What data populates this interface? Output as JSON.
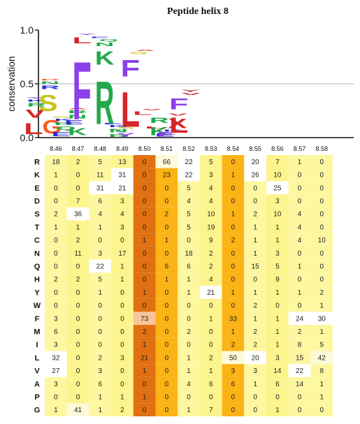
{
  "chart_data": [
    {
      "type": "sequence-logo",
      "title": "Peptide helix 8",
      "ylabel": "conservation",
      "ylim": [
        0,
        1.0
      ],
      "yticks": [
        "0.0",
        "0.5",
        "1.0"
      ],
      "stacks": [
        [
          [
            "L",
            0.16,
            "#d62728"
          ],
          [
            "V",
            0.12,
            "#d62728"
          ],
          [
            "R",
            0.05,
            "#22a84a"
          ],
          [
            "K",
            0.03,
            "#2b2bd8"
          ],
          [
            "Y",
            0.02,
            "#7b3fe4"
          ]
        ],
        [
          [
            "G",
            0.2,
            "#ff5a1f"
          ],
          [
            "S",
            0.24,
            "#c9c41e"
          ],
          [
            "R",
            0.05,
            "#2b2bd8"
          ],
          [
            "N",
            0.04,
            "#22a84a"
          ],
          [
            "D",
            0.02,
            "#ff5a1f"
          ]
        ],
        [
          [
            "E",
            0.06,
            "#2b2bd8"
          ],
          [
            "Q",
            0.05,
            "#22a84a"
          ],
          [
            "R",
            0.04,
            "#22a84a"
          ],
          [
            "K",
            0.03,
            "#2b2bd8"
          ],
          [
            "S",
            0.02,
            "#c9c41e"
          ]
        ],
        [
          [
            "K",
            0.11,
            "#22a84a"
          ],
          [
            "E",
            0.06,
            "#2b2bd8"
          ],
          [
            "N",
            0.05,
            "#22a84a"
          ],
          [
            "R",
            0.04,
            "#22a84a"
          ],
          [
            "A",
            0.02,
            "#d62728"
          ]
        ],
        [
          [
            "F",
            0.86,
            "#8b3fe8"
          ],
          [
            "L",
            0.09,
            "#d62728"
          ],
          [
            "Y",
            0.02,
            "#7b3fe4"
          ]
        ],
        [
          [
            "R",
            0.64,
            "#22a84a"
          ],
          [
            "K",
            0.2,
            "#22a84a"
          ],
          [
            "N",
            0.05,
            "#22a84a"
          ],
          [
            "Q",
            0.03,
            "#22a84a"
          ],
          [
            "E",
            0.02,
            "#2b2bd8"
          ]
        ],
        [
          [
            "R",
            0.04,
            "#22a84a"
          ],
          [
            "N",
            0.05,
            "#22a84a"
          ],
          [
            "K",
            0.03,
            "#2b2bd8"
          ],
          [
            "E",
            0.02,
            "#2b2bd8"
          ]
        ],
        [
          [
            "Y",
            0.05,
            "#8b3fe8"
          ],
          [
            "T",
            0.03,
            "#22a84a"
          ],
          [
            "S",
            0.02,
            "#c9c41e"
          ],
          [
            "K",
            0.02,
            "#22a84a"
          ]
        ],
        [
          [
            "L",
            0.52,
            "#d62728"
          ],
          [
            "F",
            0.25,
            "#8b3fe8"
          ],
          [
            "S",
            0.03,
            "#c9c41e"
          ],
          [
            "A",
            0.02,
            "#d62728"
          ]
        ],
        [
          [
            "K",
            0.12,
            "#22a84a"
          ],
          [
            "R",
            0.08,
            "#22a84a"
          ],
          [
            "L",
            0.05,
            "#d62728"
          ],
          [
            "V",
            0.02,
            "#d62728"
          ]
        ],
        [
          [
            "E",
            0.05,
            "#2b2bd8"
          ],
          [
            "K",
            0.03,
            "#2b2bd8"
          ],
          [
            "L",
            0.03,
            "#d62728"
          ]
        ],
        [
          [
            "F",
            0.06,
            "#8b3fe8"
          ],
          [
            "X",
            0.14,
            "#d62728"
          ],
          [
            "V",
            0.03,
            "#d62728"
          ]
        ],
        [
          [
            "L",
            0.23,
            "#d62728"
          ],
          [
            "F",
            0.16,
            "#8b3fe8"
          ],
          [
            "V",
            0.03,
            "#d62728"
          ],
          [
            "Y",
            0.03,
            "#d62728"
          ]
        ]
      ],
      "positions": [
        "8.46",
        "8.47",
        "8.48",
        "8.49",
        "8.50",
        "8.51",
        "8.52",
        "8.53",
        "8.54",
        "8.55",
        "8.56",
        "8.57",
        "8.58"
      ],
      "residues": [
        "R",
        "K",
        "E",
        "D",
        "S",
        "T",
        "C",
        "N",
        "Q",
        "H",
        "Y",
        "W",
        "F",
        "M",
        "I",
        "L",
        "V",
        "A",
        "P",
        "G"
      ],
      "column_colors": [
        "#fdf7a0",
        "#fcf48c",
        "#fdf7a0",
        "#fcf48c",
        "#e07011",
        "#fbb315",
        "#fdf7a0",
        "#fcf48c",
        "#fbb315",
        "#fdf7a0",
        "#fcf48c",
        "#fdf7a0",
        "#fdf7a0"
      ],
      "values": [
        [
          18,
          2,
          5,
          13,
          0,
          66,
          22,
          5,
          0,
          20,
          7,
          1,
          0
        ],
        [
          1,
          0,
          11,
          31,
          0,
          23,
          22,
          3,
          1,
          26,
          10,
          0,
          0
        ],
        [
          0,
          0,
          31,
          21,
          0,
          0,
          5,
          4,
          0,
          0,
          25,
          0,
          0
        ],
        [
          0,
          7,
          6,
          3,
          0,
          0,
          4,
          4,
          0,
          0,
          3,
          0,
          0
        ],
        [
          2,
          36,
          4,
          4,
          0,
          2,
          5,
          10,
          1,
          2,
          10,
          4,
          0
        ],
        [
          1,
          1,
          1,
          3,
          0,
          0,
          5,
          19,
          0,
          1,
          1,
          4,
          0
        ],
        [
          0,
          2,
          0,
          0,
          1,
          1,
          0,
          9,
          2,
          1,
          1,
          4,
          10
        ],
        [
          0,
          11,
          3,
          17,
          0,
          0,
          18,
          2,
          0,
          1,
          3,
          0,
          0
        ],
        [
          0,
          0,
          22,
          1,
          0,
          6,
          6,
          2,
          0,
          15,
          5,
          1,
          0
        ],
        [
          2,
          2,
          5,
          1,
          0,
          1,
          1,
          4,
          0,
          0,
          9,
          0,
          0
        ],
        [
          0,
          0,
          1,
          0,
          1,
          0,
          1,
          21,
          1,
          1,
          1,
          1,
          2
        ],
        [
          0,
          0,
          0,
          0,
          0,
          0,
          0,
          0,
          0,
          2,
          0,
          0,
          1
        ],
        [
          3,
          0,
          0,
          0,
          73,
          0,
          0,
          1,
          33,
          1,
          1,
          24,
          30
        ],
        [
          6,
          0,
          0,
          0,
          2,
          0,
          2,
          0,
          1,
          2,
          1,
          2,
          1
        ],
        [
          3,
          0,
          0,
          0,
          1,
          0,
          0,
          0,
          2,
          2,
          1,
          8,
          5
        ],
        [
          32,
          0,
          2,
          3,
          21,
          0,
          1,
          2,
          50,
          20,
          3,
          15,
          42
        ],
        [
          27,
          0,
          3,
          0,
          1,
          0,
          1,
          1,
          3,
          3,
          14,
          22,
          8
        ],
        [
          3,
          0,
          6,
          0,
          0,
          0,
          4,
          6,
          6,
          1,
          6,
          14,
          1
        ],
        [
          0,
          0,
          1,
          1,
          1,
          0,
          0,
          0,
          0,
          0,
          0,
          0,
          1
        ],
        [
          1,
          41,
          1,
          2,
          0,
          0,
          1,
          7,
          0,
          0,
          1,
          0,
          0
        ]
      ]
    }
  ]
}
